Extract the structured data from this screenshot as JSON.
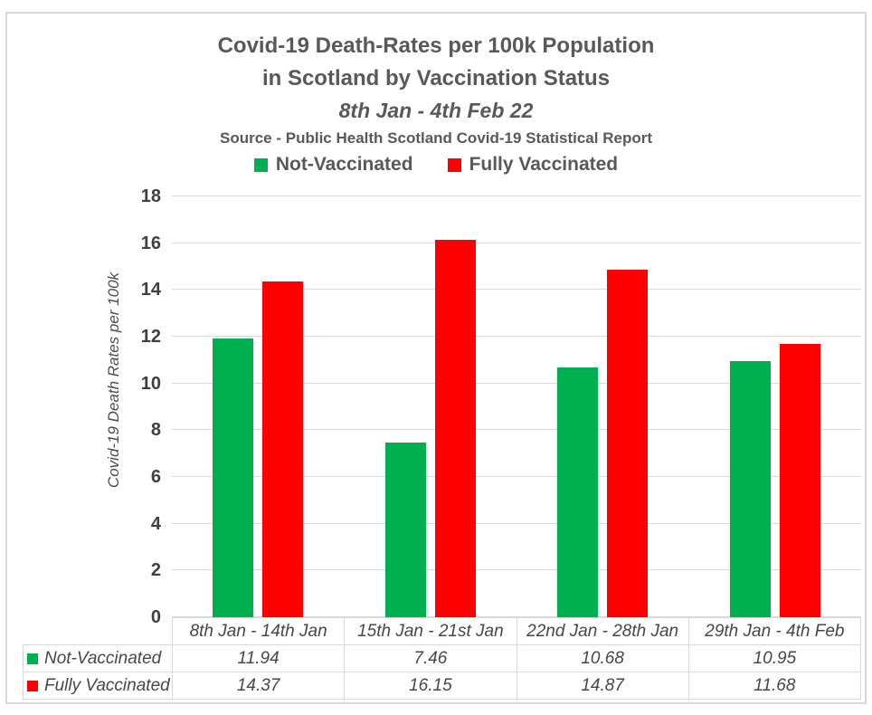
{
  "chart_data": {
    "type": "bar",
    "title_lines": [
      "Covid-19 Death-Rates per 100k Population",
      "in Scotland by Vaccination Status"
    ],
    "subtitle": "8th Jan - 4th Feb 22",
    "source": "Source - Public Health Scotland Covid-19 Statistical Report",
    "categories": [
      "8th Jan - 14th Jan",
      "15th Jan - 21st Jan",
      "22nd Jan - 28th Jan",
      "29th Jan - 4th Feb"
    ],
    "series": [
      {
        "name": "Not-Vaccinated",
        "color": "#00B050",
        "values": [
          11.94,
          7.46,
          10.68,
          10.95
        ]
      },
      {
        "name": "Fully Vaccinated",
        "color": "#FF0000",
        "values": [
          14.37,
          16.15,
          14.87,
          11.68
        ]
      }
    ],
    "xlabel": "",
    "ylabel": "Covid-19 Death Rates per 100k",
    "ylim": [
      0,
      18
    ],
    "ytick_step": 2,
    "grid": true,
    "legend_position": "top",
    "data_table_shown": true
  },
  "colors": {
    "grid": "#D9D9D9",
    "frame_border": "#D9D9D9",
    "title_text": "#595959",
    "axis_text": "#404040"
  }
}
